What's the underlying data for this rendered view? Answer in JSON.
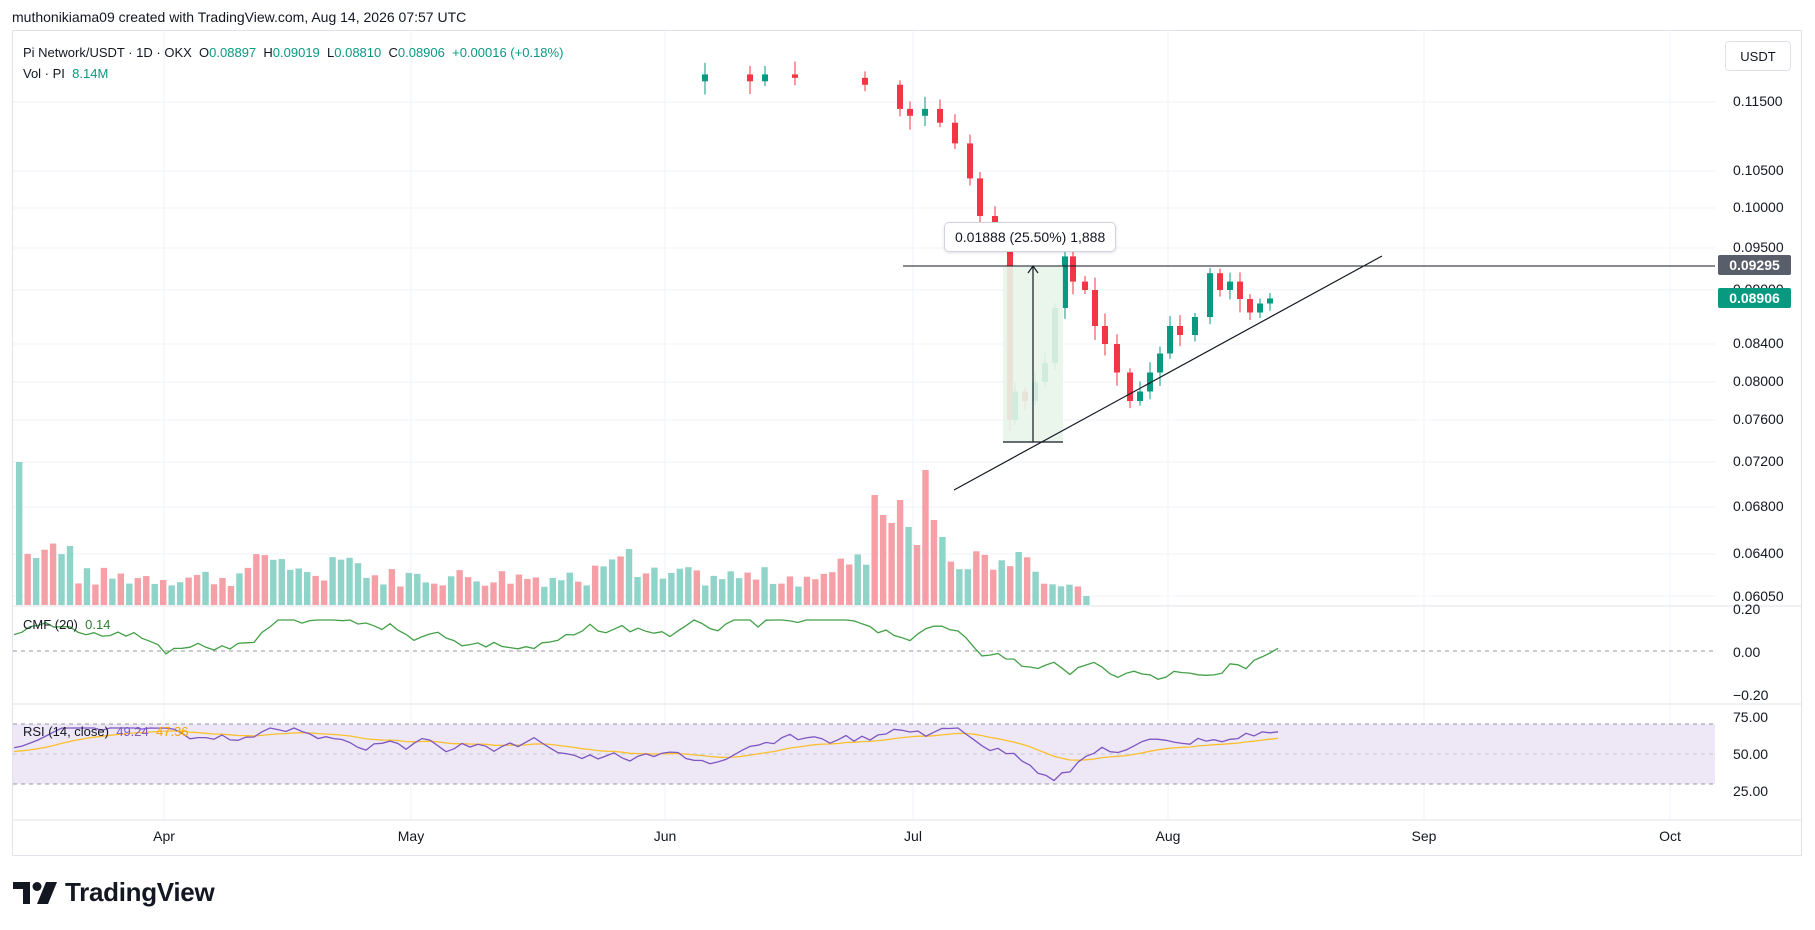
{
  "header": {
    "attribution": "muthonikiama09 created with TradingView.com, Aug 14, 2026 07:57 UTC"
  },
  "legend": {
    "symbol": "Pi Network/USDT · 1D · OKX",
    "open_label": "O",
    "open": "0.08897",
    "high_label": "H",
    "high": "0.09019",
    "low_label": "L",
    "low": "0.08810",
    "close_label": "C",
    "close": "0.08906",
    "change": "+0.00016 (+0.18%)",
    "vol_label": "Vol · PI",
    "vol_value": "8.14M"
  },
  "currency_button": "USDT",
  "price_axis": [
    "0.11500",
    "0.10500",
    "0.10000",
    "0.09500",
    "0.09000",
    "0.08400",
    "0.08000",
    "0.07600",
    "0.07200",
    "0.06800",
    "0.06400",
    "0.06050"
  ],
  "price_tags": {
    "line_level": "0.09295",
    "last_price": "0.08906"
  },
  "measure_label": "0.01888 (25.50%) 1,888",
  "cmf": {
    "label": "CMF (20)",
    "value": "0.14",
    "axis": [
      "0.20",
      "0.00",
      "−0.20"
    ]
  },
  "rsi": {
    "label": "RSI (14, close)",
    "value": "49.24",
    "ma_value": "47.36",
    "axis": [
      "75.00",
      "50.00",
      "25.00"
    ]
  },
  "time_axis": [
    "Apr",
    "May",
    "Jun",
    "Jul",
    "Aug",
    "Sep",
    "Oct"
  ],
  "brand": {
    "name": "TradingView"
  },
  "colors": {
    "up": "#089981",
    "down": "#f23645",
    "vol_up": "#8fd3c9",
    "vol_down": "#f5a0a6",
    "cmf_line": "#43a047",
    "rsi_line": "#7e57c2",
    "rsi_ma": "#fbc02d",
    "rsi_band": "#ede7f6"
  },
  "chart_data": {
    "type": "candlestick",
    "symbol": "Pi Network/USDT",
    "interval": "1D",
    "candles_recent": [
      {
        "x": "Jul 01",
        "o": 0.113,
        "h": 0.1175,
        "l": 0.111,
        "c": 0.114
      },
      {
        "x": "Jul 05",
        "o": 0.112,
        "h": 0.115,
        "l": 0.106,
        "c": 0.108
      },
      {
        "x": "Jul 08",
        "o": 0.104,
        "h": 0.108,
        "l": 0.099,
        "c": 0.1
      },
      {
        "x": "Jul 12",
        "o": 0.098,
        "h": 0.1,
        "l": 0.074,
        "c": 0.075
      },
      {
        "x": "Jul 15",
        "o": 0.076,
        "h": 0.087,
        "l": 0.074,
        "c": 0.08
      },
      {
        "x": "Jul 19",
        "o": 0.085,
        "h": 0.104,
        "l": 0.084,
        "c": 0.095
      },
      {
        "x": "Jul 22",
        "o": 0.092,
        "h": 0.093,
        "l": 0.083,
        "c": 0.085
      },
      {
        "x": "Jul 26",
        "o": 0.08,
        "h": 0.082,
        "l": 0.074,
        "c": 0.078
      },
      {
        "x": "Aug 01",
        "o": 0.082,
        "h": 0.087,
        "l": 0.081,
        "c": 0.086
      },
      {
        "x": "Aug 06",
        "o": 0.089,
        "h": 0.096,
        "l": 0.088,
        "c": 0.093
      },
      {
        "x": "Aug 10",
        "o": 0.088,
        "h": 0.09,
        "l": 0.085,
        "c": 0.088
      },
      {
        "x": "Aug 14",
        "o": 0.08897,
        "h": 0.09019,
        "l": 0.0881,
        "c": 0.08906
      }
    ],
    "horizontal_line": 0.09295,
    "cmf_last": 0.14,
    "rsi_last": 49.24,
    "rsi_ma_last": 47.36,
    "volume_last": "8.14M"
  }
}
